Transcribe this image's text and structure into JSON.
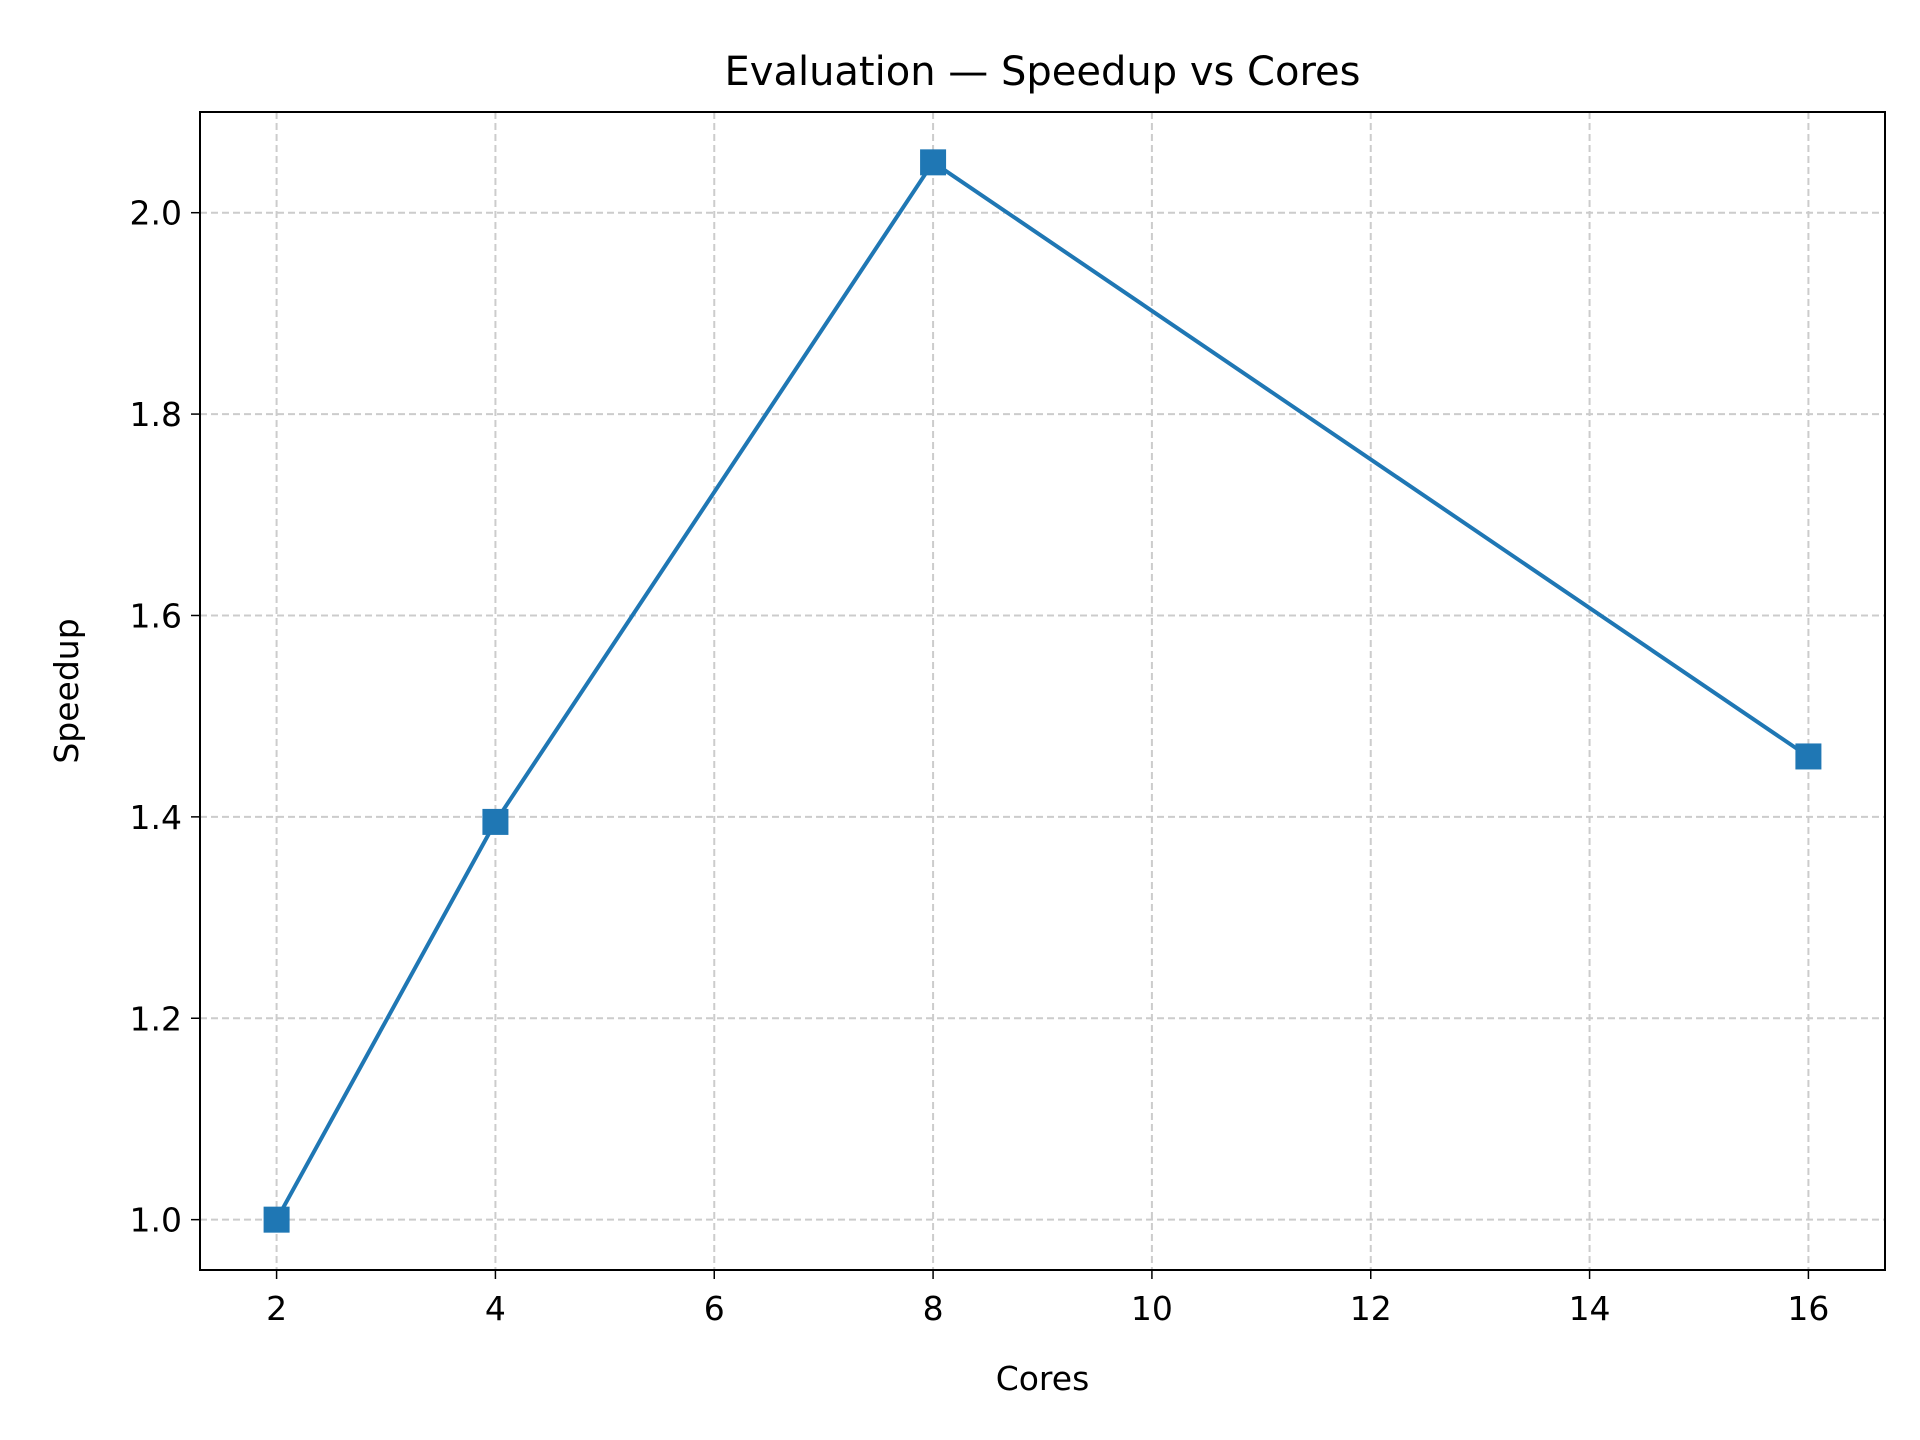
{
  "chart_data": {
    "type": "line",
    "title": "Evaluation — Speedup vs Cores",
    "xlabel": "Cores",
    "ylabel": "Speedup",
    "xlim": [
      1.3,
      16.7
    ],
    "ylim": [
      0.95,
      2.1
    ],
    "xticks": [
      2,
      4,
      6,
      8,
      10,
      12,
      14,
      16
    ],
    "xtick_labels": [
      "2",
      "4",
      "6",
      "8",
      "10",
      "12",
      "14",
      "16"
    ],
    "yticks": [
      1.0,
      1.2,
      1.4,
      1.6,
      1.8,
      2.0
    ],
    "ytick_labels": [
      "1.0",
      "1.2",
      "1.4",
      "1.6",
      "1.8",
      "2.0"
    ],
    "grid": true,
    "series": [
      {
        "x": [
          2,
          4,
          8,
          16
        ],
        "y": [
          1.0,
          1.395,
          2.05,
          1.46
        ],
        "color": "#1f77b4",
        "marker": "square"
      }
    ]
  }
}
